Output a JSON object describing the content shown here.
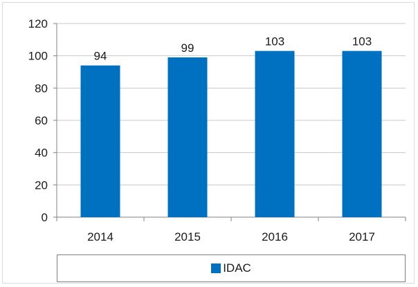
{
  "chart_data": {
    "type": "bar",
    "categories": [
      "2014",
      "2015",
      "2016",
      "2017"
    ],
    "series": [
      {
        "name": "IDAC",
        "values": [
          94,
          99,
          103,
          103
        ]
      }
    ],
    "data_labels": [
      "94",
      "99",
      "103",
      "103"
    ],
    "y_ticks": [
      "0",
      "20",
      "40",
      "60",
      "80",
      "100",
      "120"
    ],
    "ylim": [
      0,
      120
    ],
    "grid": true,
    "legend_position": "bottom",
    "title": "",
    "xlabel": "",
    "ylabel": ""
  },
  "colors": {
    "bar": "#0070c0",
    "grid": "#c8c8c8",
    "axis": "#808080"
  },
  "legend": {
    "label": "IDAC"
  }
}
